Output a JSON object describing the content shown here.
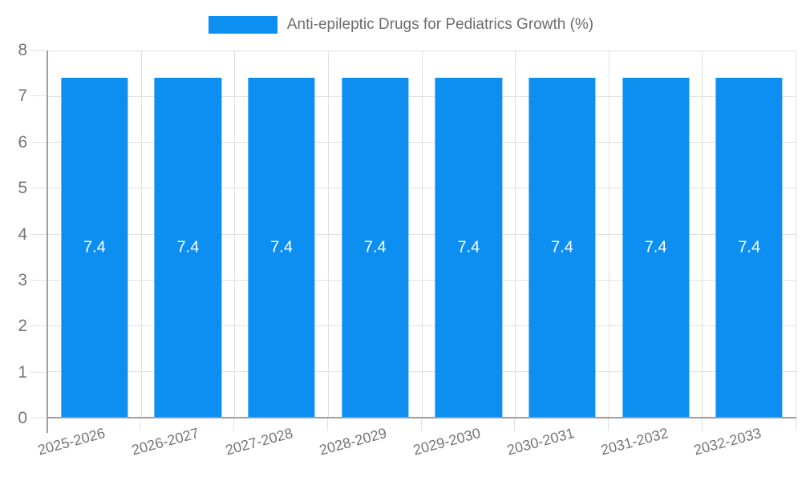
{
  "legend": {
    "label": "Anti-epileptic Drugs for Pediatrics Growth (%)"
  },
  "colors": {
    "bar": "#0d8ff2",
    "grid": "#e0e0e0",
    "axis": "#9e9e9e",
    "tick_text": "#757575",
    "title_text": "#6e6e6e",
    "value_label": "#ffffff"
  },
  "chart_data": {
    "type": "bar",
    "title": "Anti-epileptic Drugs for Pediatrics Growth (%)",
    "categories": [
      "2025-2026",
      "2026-2027",
      "2027-2028",
      "2028-2029",
      "2029-2030",
      "2030-2031",
      "2031-2032",
      "2032-2033"
    ],
    "values": [
      7.4,
      7.4,
      7.4,
      7.4,
      7.4,
      7.4,
      7.4,
      7.4
    ],
    "series": [
      {
        "name": "Anti-epileptic Drugs for Pediatrics Growth (%)",
        "values": [
          7.4,
          7.4,
          7.4,
          7.4,
          7.4,
          7.4,
          7.4,
          7.4
        ]
      }
    ],
    "xlabel": "",
    "ylabel": "",
    "ylim": [
      0,
      8
    ],
    "ytick_labels": [
      "0",
      "1",
      "2",
      "3",
      "4",
      "5",
      "6",
      "7",
      "8"
    ],
    "grid": true,
    "legend_position": "top-center",
    "value_label_position": "inside-middle",
    "xtick_rotation_deg": -15
  }
}
